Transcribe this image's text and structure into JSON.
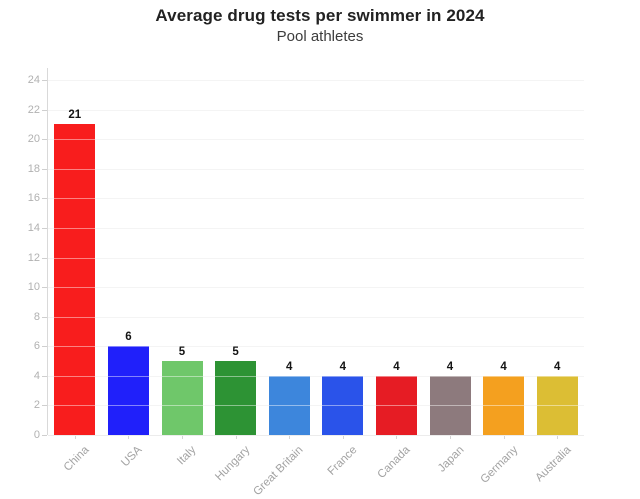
{
  "header": {
    "title": "Average drug tests per swimmer in 2024",
    "subtitle": "Pool athletes"
  },
  "chart_data": {
    "type": "bar",
    "title": "Average drug tests per swimmer in 2024",
    "subtitle": "Pool athletes",
    "categories": [
      "China",
      "USA",
      "Italy",
      "Hungary",
      "Great Britain",
      "France",
      "Canada",
      "Japan",
      "Germany",
      "Australia"
    ],
    "values": [
      21,
      6,
      5,
      5,
      4,
      4,
      4,
      4,
      4,
      4
    ],
    "bar_colors": [
      "#f81d1d",
      "#2020fa",
      "#6fc76a",
      "#2d9334",
      "#3d86dc",
      "#2a53ea",
      "#e61c24",
      "#8d7a7d",
      "#f4a01f",
      "#dcbe34"
    ],
    "value_labels": [
      "21",
      "6",
      "5",
      "5",
      "4",
      "4",
      "4",
      "4",
      "4",
      "4"
    ],
    "xlabel": "",
    "ylabel": "",
    "ylim": [
      0,
      24
    ],
    "yticks": [
      0,
      2,
      4,
      6,
      8,
      10,
      12,
      14,
      16,
      18,
      20,
      22,
      24
    ],
    "grid": "horizontal",
    "legend": "none",
    "colors": {
      "background": "#ffffff",
      "gridline": "#ececec",
      "axis_line": "#d9d9d9",
      "tick_label": "#b1b1b1",
      "category_label": "#a3a3a3",
      "value_label": "#141414",
      "title": "#222222"
    }
  }
}
